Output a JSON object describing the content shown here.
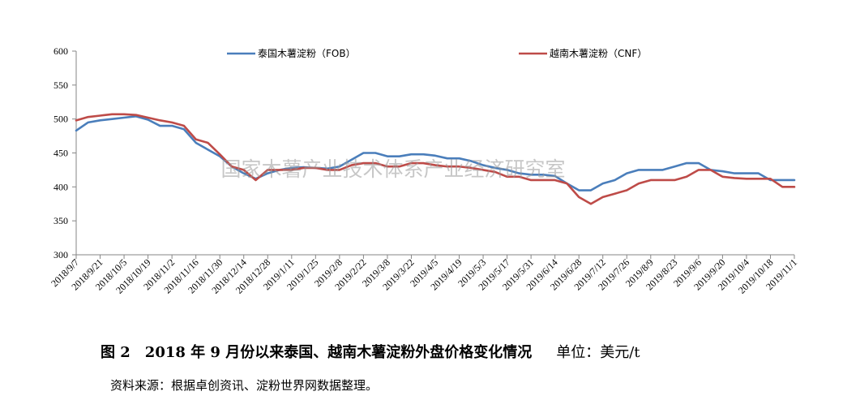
{
  "chart_data": {
    "type": "line",
    "title": "",
    "xlabel": "",
    "ylabel": "",
    "ylim": [
      300,
      600
    ],
    "yticks": [
      300,
      350,
      400,
      450,
      500,
      550,
      600
    ],
    "grid": false,
    "legend_position": "top",
    "x_tick_labels": [
      "2018/9/7",
      "2018/9/21",
      "2018/10/5",
      "2018/10/19",
      "2018/11/2",
      "2018/11/16",
      "2018/11/30",
      "2018/12/14",
      "2018/12/28",
      "2019/1/11",
      "2019/1/25",
      "2019/2/8",
      "2019/2/22",
      "2019/3/8",
      "2019/3/22",
      "2019/4/5",
      "2019/4/19",
      "2019/5/3",
      "2019/5/17",
      "2019/5/31",
      "2019/6/14",
      "2019/6/28",
      "2019/7/12",
      "2019/7/26",
      "2019/8/9",
      "2019/8/23",
      "2019/9/6",
      "2019/9/20",
      "2019/10/4",
      "2019/10/18",
      "2019/11/1"
    ],
    "x": [
      "2018/9/7",
      "2018/9/14",
      "2018/9/21",
      "2018/9/28",
      "2018/10/5",
      "2018/10/12",
      "2018/10/19",
      "2018/10/26",
      "2018/11/2",
      "2018/11/9",
      "2018/11/16",
      "2018/11/23",
      "2018/11/30",
      "2018/12/7",
      "2018/12/14",
      "2018/12/21",
      "2018/12/28",
      "2019/1/4",
      "2019/1/11",
      "2019/1/18",
      "2019/1/25",
      "2019/2/1",
      "2019/2/8",
      "2019/2/15",
      "2019/2/22",
      "2019/3/1",
      "2019/3/8",
      "2019/3/15",
      "2019/3/22",
      "2019/3/29",
      "2019/4/5",
      "2019/4/12",
      "2019/4/19",
      "2019/4/26",
      "2019/5/3",
      "2019/5/10",
      "2019/5/17",
      "2019/5/24",
      "2019/5/31",
      "2019/6/7",
      "2019/6/14",
      "2019/6/21",
      "2019/6/28",
      "2019/7/5",
      "2019/7/12",
      "2019/7/19",
      "2019/7/26",
      "2019/8/2",
      "2019/8/9",
      "2019/8/16",
      "2019/8/23",
      "2019/8/30",
      "2019/9/6",
      "2019/9/13",
      "2019/9/20",
      "2019/9/27",
      "2019/10/4",
      "2019/10/11",
      "2019/10/18",
      "2019/10/25",
      "2019/11/1"
    ],
    "series": [
      {
        "name": "泰国木薯淀粉（FOB）",
        "color": "#4a7ebb",
        "values": [
          483,
          495,
          498,
          500,
          502,
          504,
          499,
          490,
          490,
          485,
          465,
          455,
          445,
          430,
          420,
          412,
          420,
          425,
          428,
          429,
          428,
          427,
          430,
          440,
          450,
          450,
          445,
          445,
          448,
          448,
          446,
          442,
          442,
          438,
          432,
          428,
          425,
          420,
          418,
          418,
          416,
          405,
          395,
          395,
          405,
          410,
          420,
          425,
          425,
          425,
          430,
          435,
          435,
          425,
          423,
          420,
          420,
          420,
          410,
          410,
          410
        ]
      },
      {
        "name": "越南木薯淀粉（CNF）",
        "color": "#be4b48",
        "values": [
          498,
          503,
          505,
          507,
          507,
          506,
          502,
          498,
          495,
          490,
          470,
          465,
          448,
          430,
          425,
          410,
          425,
          425,
          425,
          428,
          428,
          425,
          425,
          432,
          435,
          435,
          430,
          430,
          435,
          435,
          432,
          430,
          430,
          428,
          425,
          422,
          415,
          415,
          410,
          410,
          410,
          405,
          385,
          375,
          385,
          390,
          395,
          405,
          410,
          410,
          410,
          415,
          425,
          425,
          415,
          413,
          412,
          412,
          412,
          400,
          400
        ]
      }
    ]
  },
  "watermark": "国家木薯产业技术体系产业经济研究室",
  "caption": {
    "title": "图 2　2018 年 9 月份以来泰国、越南木薯淀粉外盘价格变化情况",
    "unit": "单位：美元/t"
  },
  "source": "资料来源：根据卓创资讯、淀粉世界网数据整理。"
}
